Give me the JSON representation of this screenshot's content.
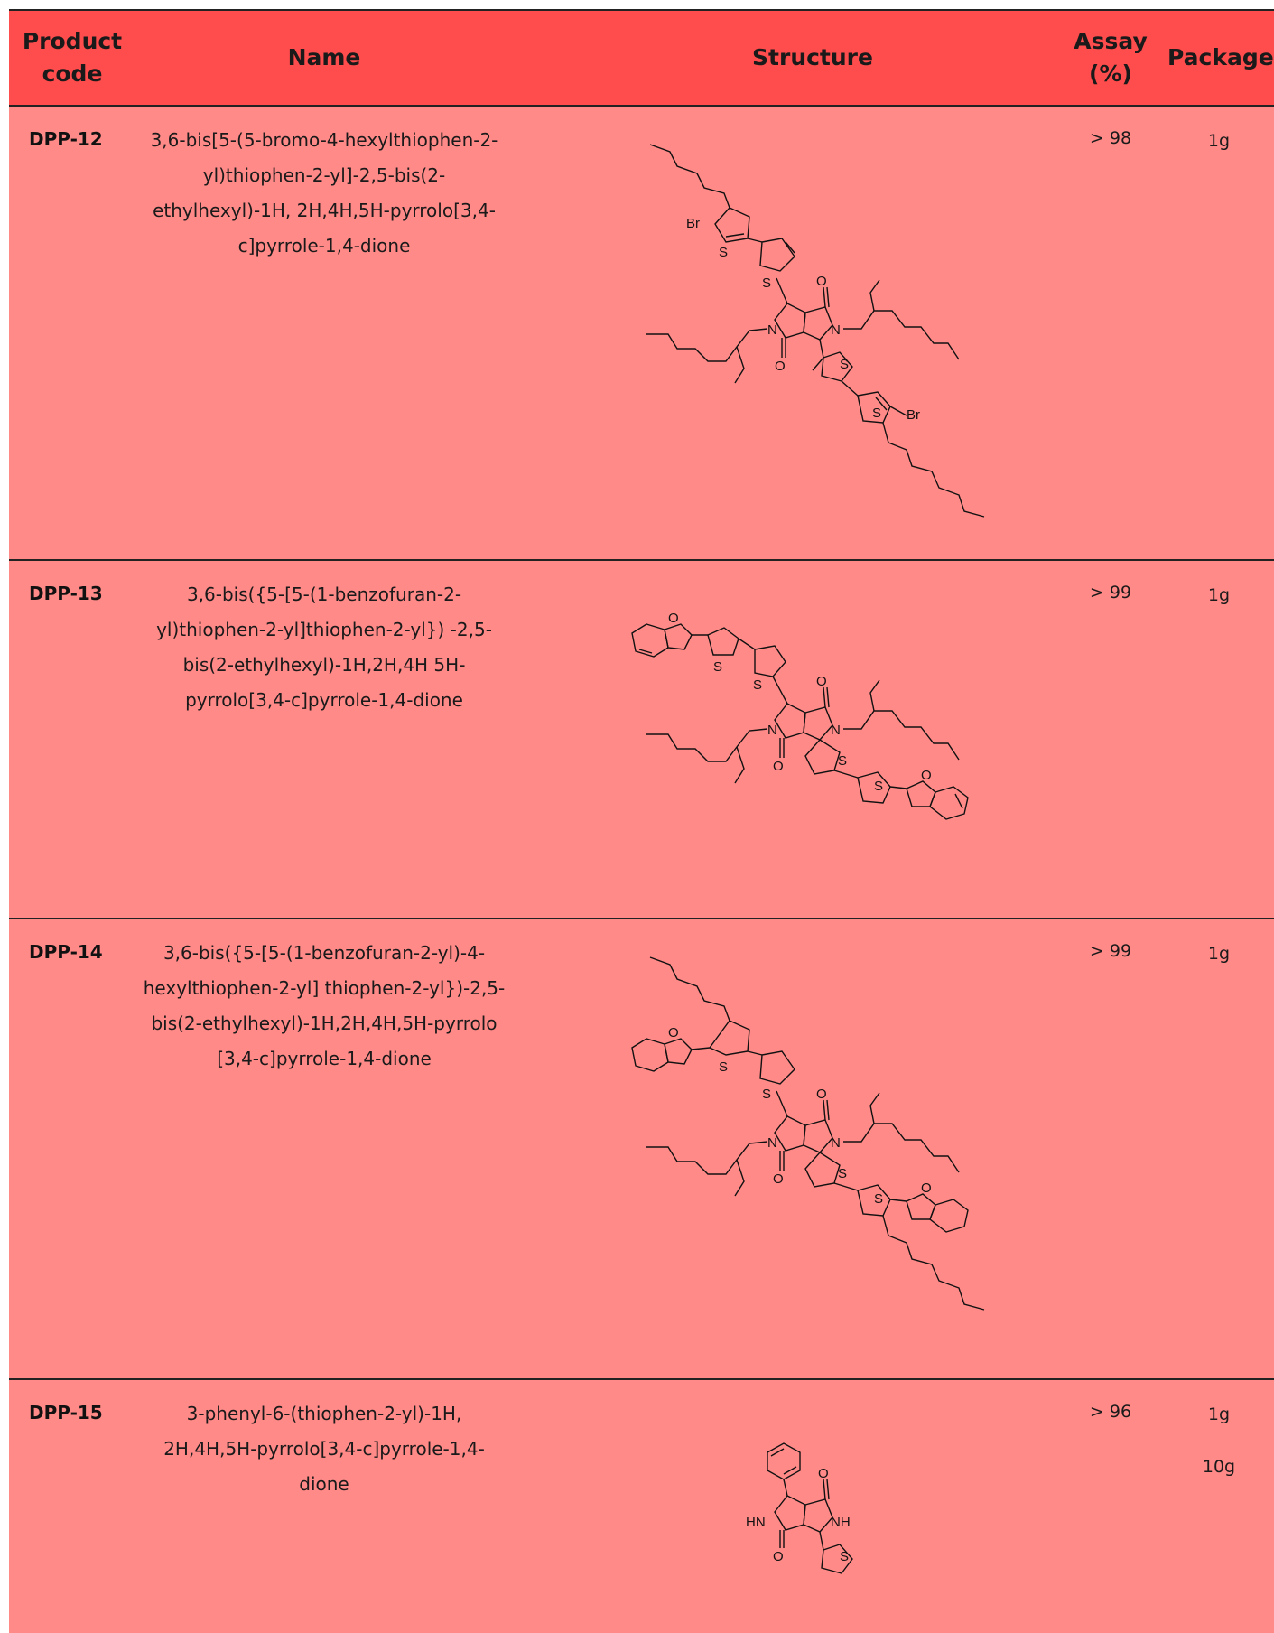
{
  "header": {
    "product_code": "Product code",
    "name": "Name",
    "structure": "Structure",
    "assay": "Assay (%)",
    "package": "Package"
  },
  "rows": [
    {
      "code": "DPP-12",
      "name": "3,6-bis[5-(5-bromo-4-hexylthiophen-2-yl)thiophen-2-yl]-2,5-bis(2-ethylhexyl)-1H, 2H,4H,5H-pyrrolo[3,4-c]pyrrole-1,4-dione",
      "assay": "> 98",
      "packages": [
        "1g"
      ]
    },
    {
      "code": "DPP-13",
      "name": "3,6-bis({5-[5-(1-benzofuran-2-yl)thiophen-2-yl]thiophen-2-yl}) -2,5-bis(2-ethylhexyl)-1H,2H,4H 5H-pyrrolo[3,4-c]pyrrole-1,4-dione",
      "assay": "> 99",
      "packages": [
        "1g"
      ]
    },
    {
      "code": "DPP-14",
      "name": "3,6-bis({5-[5-(1-benzofuran-2-yl)-4-hexylthiophen-2-yl] thiophen-2-yl})-2,5-bis(2-ethylhexyl)-1H,2H,4H,5H-pyrrolo [3,4-c]pyrrole-1,4-dione",
      "assay": "> 99",
      "packages": [
        "1g"
      ]
    },
    {
      "code": "DPP-15",
      "name": "3-phenyl-6-(thiophen-2-yl)-1H, 2H,4H,5H-pyrrolo[3,4-c]pyrrole-1,4-dione",
      "assay": "> 96",
      "packages": [
        "1g",
        "10g"
      ]
    }
  ],
  "atom_labels": {
    "br": "Br",
    "s": "S",
    "n": "N",
    "o": "O",
    "hn": "HN",
    "nh": "NH"
  },
  "colors": {
    "header_bg": "#ff4c4c",
    "row_bg": "#ff8a88",
    "rule": "#222222"
  }
}
